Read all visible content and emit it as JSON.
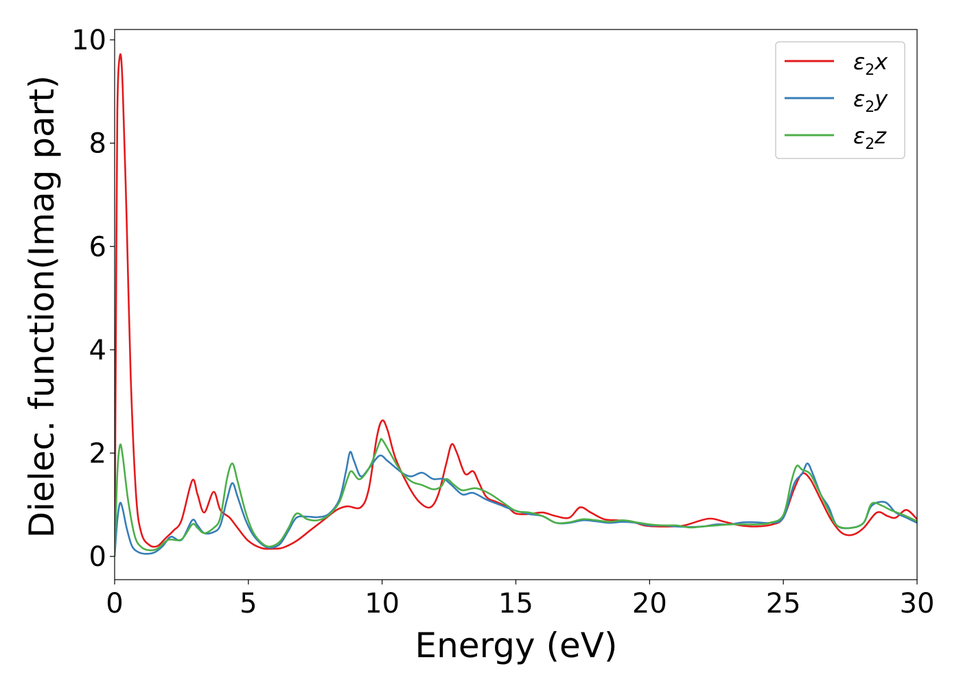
{
  "chart_data": {
    "type": "line",
    "title": "",
    "xlabel": "Energy (eV)",
    "ylabel": "Dielec. function(Imag part)",
    "xlim": [
      0,
      30
    ],
    "ylim": [
      -0.45,
      10.2
    ],
    "xticks": [
      "0",
      "5",
      "10",
      "15",
      "20",
      "25",
      "30"
    ],
    "yticks": [
      "0",
      "2",
      "4",
      "6",
      "8",
      "10"
    ],
    "grid": false,
    "legend_position": "top-right",
    "colors": {
      "x": "#e41a1c",
      "y": "#377eb8",
      "z": "#4daf4a"
    },
    "series": [
      {
        "name": "ε₂x",
        "points": [
          [
            0,
            0
          ],
          [
            0.05,
            4.5
          ],
          [
            0.1,
            8.6
          ],
          [
            0.2,
            9.7
          ],
          [
            0.3,
            9.1
          ],
          [
            0.45,
            6.5
          ],
          [
            0.6,
            3.5
          ],
          [
            0.8,
            1.2
          ],
          [
            1.0,
            0.45
          ],
          [
            1.3,
            0.22
          ],
          [
            1.6,
            0.2
          ],
          [
            1.9,
            0.35
          ],
          [
            2.2,
            0.5
          ],
          [
            2.5,
            0.7
          ],
          [
            2.9,
            1.47
          ],
          [
            3.1,
            1.2
          ],
          [
            3.35,
            0.85
          ],
          [
            3.7,
            1.25
          ],
          [
            3.95,
            0.9
          ],
          [
            4.3,
            0.75
          ],
          [
            4.6,
            0.55
          ],
          [
            5.0,
            0.3
          ],
          [
            5.5,
            0.16
          ],
          [
            6.0,
            0.15
          ],
          [
            6.3,
            0.17
          ],
          [
            6.8,
            0.3
          ],
          [
            7.3,
            0.5
          ],
          [
            7.8,
            0.7
          ],
          [
            8.3,
            0.9
          ],
          [
            8.7,
            0.97
          ],
          [
            9.2,
            0.95
          ],
          [
            9.5,
            1.3
          ],
          [
            9.8,
            2.3
          ],
          [
            10.0,
            2.63
          ],
          [
            10.2,
            2.45
          ],
          [
            10.5,
            1.9
          ],
          [
            11.0,
            1.35
          ],
          [
            11.4,
            1.05
          ],
          [
            11.8,
            0.95
          ],
          [
            12.1,
            1.2
          ],
          [
            12.4,
            1.8
          ],
          [
            12.6,
            2.17
          ],
          [
            12.8,
            2.0
          ],
          [
            13.1,
            1.6
          ],
          [
            13.4,
            1.65
          ],
          [
            13.6,
            1.45
          ],
          [
            13.9,
            1.15
          ],
          [
            14.3,
            1.05
          ],
          [
            14.7,
            0.95
          ],
          [
            15.0,
            0.83
          ],
          [
            15.5,
            0.82
          ],
          [
            16.0,
            0.85
          ],
          [
            16.5,
            0.78
          ],
          [
            17.0,
            0.75
          ],
          [
            17.4,
            0.95
          ],
          [
            17.8,
            0.85
          ],
          [
            18.3,
            0.72
          ],
          [
            18.8,
            0.7
          ],
          [
            19.3,
            0.68
          ],
          [
            19.8,
            0.6
          ],
          [
            20.3,
            0.58
          ],
          [
            20.8,
            0.58
          ],
          [
            21.3,
            0.6
          ],
          [
            22.2,
            0.73
          ],
          [
            22.8,
            0.67
          ],
          [
            23.4,
            0.6
          ],
          [
            24.0,
            0.58
          ],
          [
            24.6,
            0.62
          ],
          [
            25.0,
            0.75
          ],
          [
            25.4,
            1.3
          ],
          [
            25.7,
            1.6
          ],
          [
            26.0,
            1.5
          ],
          [
            26.4,
            1.1
          ],
          [
            26.8,
            0.7
          ],
          [
            27.2,
            0.45
          ],
          [
            27.6,
            0.42
          ],
          [
            28.0,
            0.55
          ],
          [
            28.5,
            0.85
          ],
          [
            28.9,
            0.78
          ],
          [
            29.2,
            0.75
          ],
          [
            29.6,
            0.9
          ],
          [
            30.0,
            0.72
          ]
        ]
      },
      {
        "name": "ε₂y",
        "points": [
          [
            0,
            0
          ],
          [
            0.1,
            0.7
          ],
          [
            0.2,
            1.03
          ],
          [
            0.3,
            0.92
          ],
          [
            0.45,
            0.55
          ],
          [
            0.65,
            0.2
          ],
          [
            0.9,
            0.08
          ],
          [
            1.2,
            0.05
          ],
          [
            1.5,
            0.08
          ],
          [
            1.8,
            0.2
          ],
          [
            2.1,
            0.38
          ],
          [
            2.5,
            0.32
          ],
          [
            2.9,
            0.7
          ],
          [
            3.1,
            0.6
          ],
          [
            3.35,
            0.45
          ],
          [
            3.7,
            0.47
          ],
          [
            3.95,
            0.6
          ],
          [
            4.2,
            1.1
          ],
          [
            4.4,
            1.42
          ],
          [
            4.6,
            1.15
          ],
          [
            4.9,
            0.7
          ],
          [
            5.2,
            0.4
          ],
          [
            5.6,
            0.2
          ],
          [
            5.9,
            0.17
          ],
          [
            6.2,
            0.25
          ],
          [
            6.5,
            0.5
          ],
          [
            6.8,
            0.75
          ],
          [
            7.2,
            0.77
          ],
          [
            7.6,
            0.76
          ],
          [
            8.0,
            0.82
          ],
          [
            8.4,
            1.1
          ],
          [
            8.65,
            1.65
          ],
          [
            8.8,
            2.02
          ],
          [
            8.95,
            1.85
          ],
          [
            9.2,
            1.55
          ],
          [
            9.5,
            1.7
          ],
          [
            9.9,
            1.95
          ],
          [
            10.2,
            1.85
          ],
          [
            10.5,
            1.72
          ],
          [
            10.8,
            1.6
          ],
          [
            11.1,
            1.55
          ],
          [
            11.5,
            1.62
          ],
          [
            11.9,
            1.5
          ],
          [
            12.3,
            1.5
          ],
          [
            12.6,
            1.38
          ],
          [
            13.0,
            1.2
          ],
          [
            13.4,
            1.23
          ],
          [
            13.9,
            1.1
          ],
          [
            14.4,
            1.0
          ],
          [
            14.9,
            0.9
          ],
          [
            15.5,
            0.82
          ],
          [
            16.0,
            0.78
          ],
          [
            16.5,
            0.65
          ],
          [
            17.0,
            0.65
          ],
          [
            17.5,
            0.7
          ],
          [
            18.0,
            0.68
          ],
          [
            18.5,
            0.65
          ],
          [
            19.0,
            0.67
          ],
          [
            19.5,
            0.65
          ],
          [
            20.0,
            0.6
          ],
          [
            20.5,
            0.6
          ],
          [
            21.0,
            0.58
          ],
          [
            21.5,
            0.57
          ],
          [
            22.0,
            0.58
          ],
          [
            22.5,
            0.62
          ],
          [
            23.0,
            0.62
          ],
          [
            23.5,
            0.66
          ],
          [
            24.0,
            0.66
          ],
          [
            24.5,
            0.65
          ],
          [
            25.0,
            0.75
          ],
          [
            25.4,
            1.4
          ],
          [
            25.7,
            1.6
          ],
          [
            25.9,
            1.8
          ],
          [
            26.1,
            1.6
          ],
          [
            26.4,
            1.2
          ],
          [
            26.7,
            0.95
          ],
          [
            27.0,
            0.6
          ],
          [
            27.5,
            0.55
          ],
          [
            28.0,
            0.65
          ],
          [
            28.3,
            0.98
          ],
          [
            28.8,
            1.05
          ],
          [
            29.2,
            0.85
          ],
          [
            29.6,
            0.75
          ],
          [
            30.0,
            0.65
          ]
        ]
      },
      {
        "name": "ε₂z",
        "points": [
          [
            0,
            0
          ],
          [
            0.1,
            1.6
          ],
          [
            0.2,
            2.15
          ],
          [
            0.3,
            1.95
          ],
          [
            0.5,
            1.1
          ],
          [
            0.75,
            0.4
          ],
          [
            1.0,
            0.18
          ],
          [
            1.3,
            0.12
          ],
          [
            1.6,
            0.15
          ],
          [
            2.0,
            0.32
          ],
          [
            2.5,
            0.33
          ],
          [
            2.9,
            0.62
          ],
          [
            3.1,
            0.55
          ],
          [
            3.35,
            0.45
          ],
          [
            3.7,
            0.55
          ],
          [
            3.95,
            0.75
          ],
          [
            4.2,
            1.5
          ],
          [
            4.4,
            1.8
          ],
          [
            4.6,
            1.45
          ],
          [
            4.9,
            0.85
          ],
          [
            5.2,
            0.45
          ],
          [
            5.6,
            0.22
          ],
          [
            5.9,
            0.2
          ],
          [
            6.2,
            0.3
          ],
          [
            6.5,
            0.55
          ],
          [
            6.8,
            0.83
          ],
          [
            7.2,
            0.72
          ],
          [
            7.6,
            0.7
          ],
          [
            8.0,
            0.8
          ],
          [
            8.4,
            1.05
          ],
          [
            8.7,
            1.5
          ],
          [
            8.85,
            1.65
          ],
          [
            9.1,
            1.5
          ],
          [
            9.3,
            1.55
          ],
          [
            9.6,
            1.8
          ],
          [
            9.9,
            2.2
          ],
          [
            10.0,
            2.26
          ],
          [
            10.3,
            2.0
          ],
          [
            10.7,
            1.65
          ],
          [
            11.1,
            1.45
          ],
          [
            11.5,
            1.38
          ],
          [
            11.9,
            1.3
          ],
          [
            12.2,
            1.35
          ],
          [
            12.4,
            1.5
          ],
          [
            12.7,
            1.38
          ],
          [
            13.0,
            1.28
          ],
          [
            13.5,
            1.32
          ],
          [
            14.0,
            1.22
          ],
          [
            14.5,
            1.05
          ],
          [
            15.0,
            0.88
          ],
          [
            15.5,
            0.85
          ],
          [
            16.0,
            0.78
          ],
          [
            16.5,
            0.65
          ],
          [
            17.0,
            0.66
          ],
          [
            17.5,
            0.72
          ],
          [
            18.0,
            0.7
          ],
          [
            18.5,
            0.67
          ],
          [
            19.0,
            0.7
          ],
          [
            19.5,
            0.66
          ],
          [
            20.0,
            0.62
          ],
          [
            20.5,
            0.6
          ],
          [
            21.0,
            0.6
          ],
          [
            21.5,
            0.56
          ],
          [
            22.0,
            0.58
          ],
          [
            22.5,
            0.6
          ],
          [
            23.0,
            0.62
          ],
          [
            23.5,
            0.62
          ],
          [
            24.0,
            0.62
          ],
          [
            24.5,
            0.65
          ],
          [
            25.0,
            0.8
          ],
          [
            25.3,
            1.45
          ],
          [
            25.5,
            1.75
          ],
          [
            25.7,
            1.68
          ],
          [
            26.0,
            1.6
          ],
          [
            26.3,
            1.3
          ],
          [
            26.7,
            0.88
          ],
          [
            27.0,
            0.6
          ],
          [
            27.5,
            0.55
          ],
          [
            28.0,
            0.65
          ],
          [
            28.3,
            1.02
          ],
          [
            28.7,
            0.98
          ],
          [
            29.0,
            0.9
          ],
          [
            29.5,
            0.8
          ],
          [
            30.0,
            0.68
          ]
        ]
      }
    ]
  },
  "legend": {
    "x": {
      "base": "ε",
      "sub": "2",
      "var": "x"
    },
    "y": {
      "base": "ε",
      "sub": "2",
      "var": "y"
    },
    "z": {
      "base": "ε",
      "sub": "2",
      "var": "z"
    }
  }
}
